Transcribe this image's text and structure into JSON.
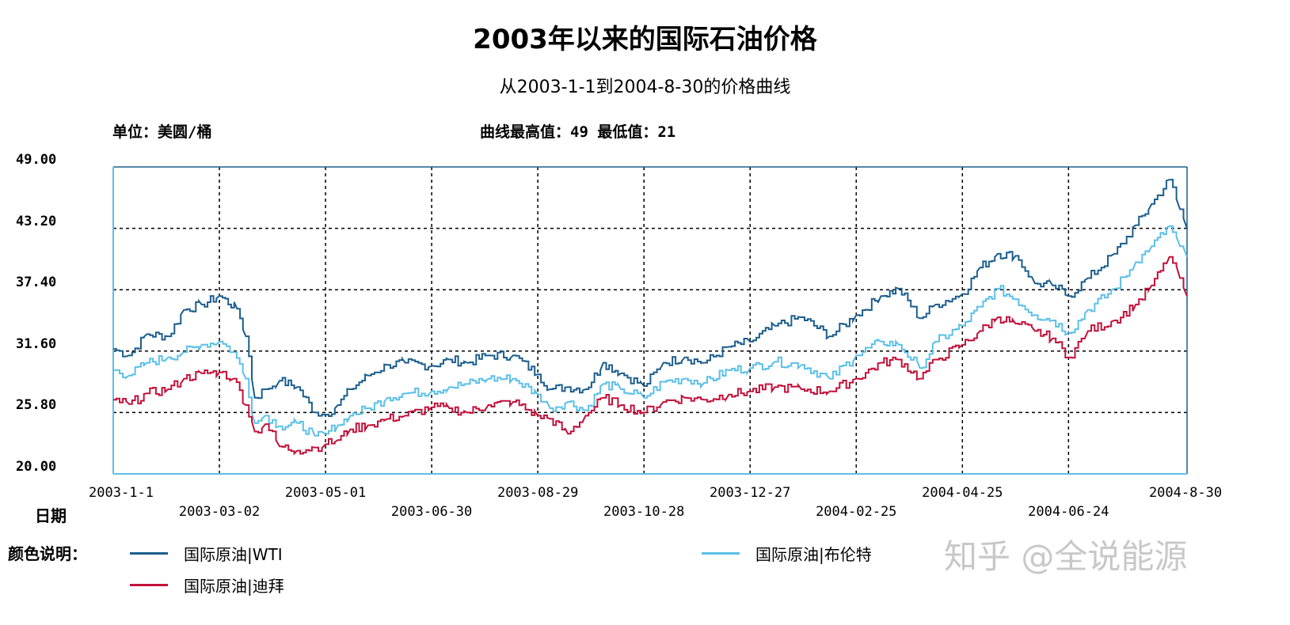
{
  "chart_data": {
    "type": "line",
    "title": "2003年以来的国际石油价格",
    "subtitle": "从2003-1-1到2004-8-30的价格曲线",
    "unit_label": "单位：美圆/桶",
    "extreme_label": "曲线最高值：49  最低值：21",
    "xlabel": "日期",
    "ylim": [
      20,
      49
    ],
    "yticks": [
      "49.00",
      "43.20",
      "37.40",
      "31.60",
      "25.80",
      "20.00"
    ],
    "ytick_values": [
      49,
      43.2,
      37.4,
      31.6,
      25.8,
      20
    ],
    "xticks_top": [
      "2003-1-1",
      "2003-05-01",
      "2003-08-29",
      "2003-12-27",
      "2004-04-25",
      "2004-8-30"
    ],
    "xticks_bottom": [
      "2003-03-02",
      "2003-06-30",
      "2003-10-28",
      "2004-02-25",
      "2004-06-24"
    ],
    "x_all": [
      "2003-01-01",
      "2003-03-02",
      "2003-05-01",
      "2003-06-30",
      "2003-08-29",
      "2003-10-28",
      "2003-12-27",
      "2004-02-25",
      "2004-04-25",
      "2004-06-24",
      "2004-08-30"
    ],
    "grid": true,
    "legend_title": "颜色说明：",
    "series": [
      {
        "name": "国际原油|WTI",
        "color": "#1b5e8c",
        "points": [
          [
            "2003-01-01",
            31.8
          ],
          [
            "2003-01-10",
            31.2
          ],
          [
            "2003-01-20",
            33.2
          ],
          [
            "2003-02-01",
            33.0
          ],
          [
            "2003-02-10",
            35.5
          ],
          [
            "2003-02-20",
            36.0
          ],
          [
            "2003-03-02",
            36.8
          ],
          [
            "2003-03-12",
            35.6
          ],
          [
            "2003-03-17",
            33.0
          ],
          [
            "2003-03-22",
            27.2
          ],
          [
            "2003-03-28",
            28.0
          ],
          [
            "2003-04-05",
            28.8
          ],
          [
            "2003-04-15",
            28.2
          ],
          [
            "2003-04-25",
            25.8
          ],
          [
            "2003-05-01",
            25.6
          ],
          [
            "2003-05-08",
            26.5
          ],
          [
            "2003-05-15",
            28.0
          ],
          [
            "2003-05-25",
            29.3
          ],
          [
            "2003-06-05",
            30.3
          ],
          [
            "2003-06-15",
            30.5
          ],
          [
            "2003-06-30",
            30.2
          ],
          [
            "2003-07-10",
            30.8
          ],
          [
            "2003-07-20",
            30.5
          ],
          [
            "2003-08-01",
            31.2
          ],
          [
            "2003-08-15",
            31.2
          ],
          [
            "2003-08-29",
            29.4
          ],
          [
            "2003-09-05",
            28.0
          ],
          [
            "2003-09-15",
            28.2
          ],
          [
            "2003-09-25",
            28.0
          ],
          [
            "2003-10-05",
            30.5
          ],
          [
            "2003-10-15",
            29.5
          ],
          [
            "2003-10-28",
            28.3
          ],
          [
            "2003-11-08",
            30.5
          ],
          [
            "2003-11-20",
            31.0
          ],
          [
            "2003-12-01",
            30.5
          ],
          [
            "2003-12-15",
            32.0
          ],
          [
            "2003-12-27",
            32.5
          ],
          [
            "2004-01-10",
            34.0
          ],
          [
            "2004-01-25",
            34.8
          ],
          [
            "2004-02-10",
            33.0
          ],
          [
            "2004-02-25",
            35.0
          ],
          [
            "2004-03-10",
            36.8
          ],
          [
            "2004-03-20",
            37.5
          ],
          [
            "2004-04-01",
            34.7
          ],
          [
            "2004-04-10",
            36.0
          ],
          [
            "2004-04-25",
            37.0
          ],
          [
            "2004-05-05",
            39.5
          ],
          [
            "2004-05-15",
            40.8
          ],
          [
            "2004-05-25",
            40.6
          ],
          [
            "2004-06-05",
            38.0
          ],
          [
            "2004-06-15",
            37.8
          ],
          [
            "2004-06-24",
            36.8
          ],
          [
            "2004-07-05",
            38.5
          ],
          [
            "2004-07-20",
            40.8
          ],
          [
            "2004-08-01",
            43.5
          ],
          [
            "2004-08-10",
            45.5
          ],
          [
            "2004-08-20",
            47.8
          ],
          [
            "2004-08-26",
            45.0
          ],
          [
            "2004-08-30",
            43.2
          ]
        ]
      },
      {
        "name": "国际原油|布伦特",
        "color": "#5bc0e8",
        "points": [
          [
            "2003-01-01",
            29.8
          ],
          [
            "2003-01-10",
            29.3
          ],
          [
            "2003-01-20",
            30.5
          ],
          [
            "2003-02-01",
            31.0
          ],
          [
            "2003-02-10",
            31.5
          ],
          [
            "2003-02-20",
            32.2
          ],
          [
            "2003-03-02",
            32.5
          ],
          [
            "2003-03-10",
            31.5
          ],
          [
            "2003-03-17",
            29.0
          ],
          [
            "2003-03-22",
            24.8
          ],
          [
            "2003-03-28",
            25.5
          ],
          [
            "2003-04-05",
            24.5
          ],
          [
            "2003-04-15",
            24.8
          ],
          [
            "2003-04-25",
            23.6
          ],
          [
            "2003-05-01",
            23.8
          ],
          [
            "2003-05-08",
            24.6
          ],
          [
            "2003-05-15",
            25.5
          ],
          [
            "2003-05-25",
            26.2
          ],
          [
            "2003-06-05",
            27.2
          ],
          [
            "2003-06-15",
            27.6
          ],
          [
            "2003-06-30",
            27.8
          ],
          [
            "2003-07-10",
            28.2
          ],
          [
            "2003-07-20",
            28.5
          ],
          [
            "2003-08-01",
            29.0
          ],
          [
            "2003-08-15",
            29.0
          ],
          [
            "2003-08-29",
            27.5
          ],
          [
            "2003-09-05",
            26.2
          ],
          [
            "2003-09-15",
            26.8
          ],
          [
            "2003-09-25",
            26.0
          ],
          [
            "2003-10-05",
            28.5
          ],
          [
            "2003-10-15",
            28.0
          ],
          [
            "2003-10-28",
            27.2
          ],
          [
            "2003-11-08",
            28.7
          ],
          [
            "2003-11-20",
            29.0
          ],
          [
            "2003-12-01",
            28.6
          ],
          [
            "2003-12-15",
            29.8
          ],
          [
            "2003-12-27",
            30.0
          ],
          [
            "2004-01-10",
            30.6
          ],
          [
            "2004-01-25",
            30.3
          ],
          [
            "2004-02-10",
            29.0
          ],
          [
            "2004-02-25",
            31.2
          ],
          [
            "2004-03-10",
            32.5
          ],
          [
            "2004-03-20",
            32.2
          ],
          [
            "2004-04-01",
            30.0
          ],
          [
            "2004-04-10",
            32.5
          ],
          [
            "2004-04-25",
            34.0
          ],
          [
            "2004-05-05",
            35.8
          ],
          [
            "2004-05-15",
            37.5
          ],
          [
            "2004-05-25",
            36.5
          ],
          [
            "2004-06-05",
            35.0
          ],
          [
            "2004-06-15",
            34.5
          ],
          [
            "2004-06-24",
            33.3
          ],
          [
            "2004-07-05",
            35.5
          ],
          [
            "2004-07-20",
            37.5
          ],
          [
            "2004-08-01",
            40.0
          ],
          [
            "2004-08-10",
            41.5
          ],
          [
            "2004-08-20",
            43.4
          ],
          [
            "2004-08-26",
            41.5
          ],
          [
            "2004-08-30",
            40.5
          ]
        ]
      },
      {
        "name": "国际原油|迪拜",
        "color": "#c2113a",
        "points": [
          [
            "2003-01-01",
            27.0
          ],
          [
            "2003-01-10",
            26.6
          ],
          [
            "2003-01-20",
            27.6
          ],
          [
            "2003-02-01",
            28.0
          ],
          [
            "2003-02-10",
            29.0
          ],
          [
            "2003-02-20",
            29.5
          ],
          [
            "2003-03-02",
            29.6
          ],
          [
            "2003-03-10",
            29.0
          ],
          [
            "2003-03-17",
            26.5
          ],
          [
            "2003-03-22",
            24.0
          ],
          [
            "2003-03-28",
            24.7
          ],
          [
            "2003-04-05",
            22.6
          ],
          [
            "2003-04-15",
            22.2
          ],
          [
            "2003-04-25",
            22.5
          ],
          [
            "2003-05-01",
            22.8
          ],
          [
            "2003-05-08",
            23.2
          ],
          [
            "2003-05-15",
            24.2
          ],
          [
            "2003-05-25",
            24.6
          ],
          [
            "2003-06-05",
            25.2
          ],
          [
            "2003-06-15",
            25.5
          ],
          [
            "2003-06-30",
            26.3
          ],
          [
            "2003-07-10",
            26.2
          ],
          [
            "2003-07-20",
            25.8
          ],
          [
            "2003-08-01",
            26.5
          ],
          [
            "2003-08-15",
            26.8
          ],
          [
            "2003-08-29",
            25.5
          ],
          [
            "2003-09-05",
            25.2
          ],
          [
            "2003-09-15",
            23.8
          ],
          [
            "2003-09-25",
            25.5
          ],
          [
            "2003-10-05",
            27.2
          ],
          [
            "2003-10-15",
            26.5
          ],
          [
            "2003-10-28",
            25.8
          ],
          [
            "2003-11-08",
            26.8
          ],
          [
            "2003-11-20",
            27.2
          ],
          [
            "2003-12-01",
            27.0
          ],
          [
            "2003-12-15",
            27.5
          ],
          [
            "2003-12-27",
            27.8
          ],
          [
            "2004-01-10",
            28.2
          ],
          [
            "2004-01-25",
            28.0
          ],
          [
            "2004-02-10",
            27.8
          ],
          [
            "2004-02-25",
            29.0
          ],
          [
            "2004-03-10",
            30.5
          ],
          [
            "2004-03-20",
            30.8
          ],
          [
            "2004-04-01",
            29.0
          ],
          [
            "2004-04-10",
            30.8
          ],
          [
            "2004-04-25",
            32.2
          ],
          [
            "2004-05-05",
            33.5
          ],
          [
            "2004-05-15",
            34.8
          ],
          [
            "2004-05-25",
            34.2
          ],
          [
            "2004-06-05",
            33.5
          ],
          [
            "2004-06-15",
            32.8
          ],
          [
            "2004-06-24",
            31.0
          ],
          [
            "2004-07-05",
            33.5
          ],
          [
            "2004-07-20",
            34.5
          ],
          [
            "2004-08-01",
            36.0
          ],
          [
            "2004-08-10",
            37.8
          ],
          [
            "2004-08-20",
            40.5
          ],
          [
            "2004-08-26",
            38.5
          ],
          [
            "2004-08-30",
            36.8
          ]
        ]
      }
    ]
  },
  "watermark": "知乎 @全说能源"
}
